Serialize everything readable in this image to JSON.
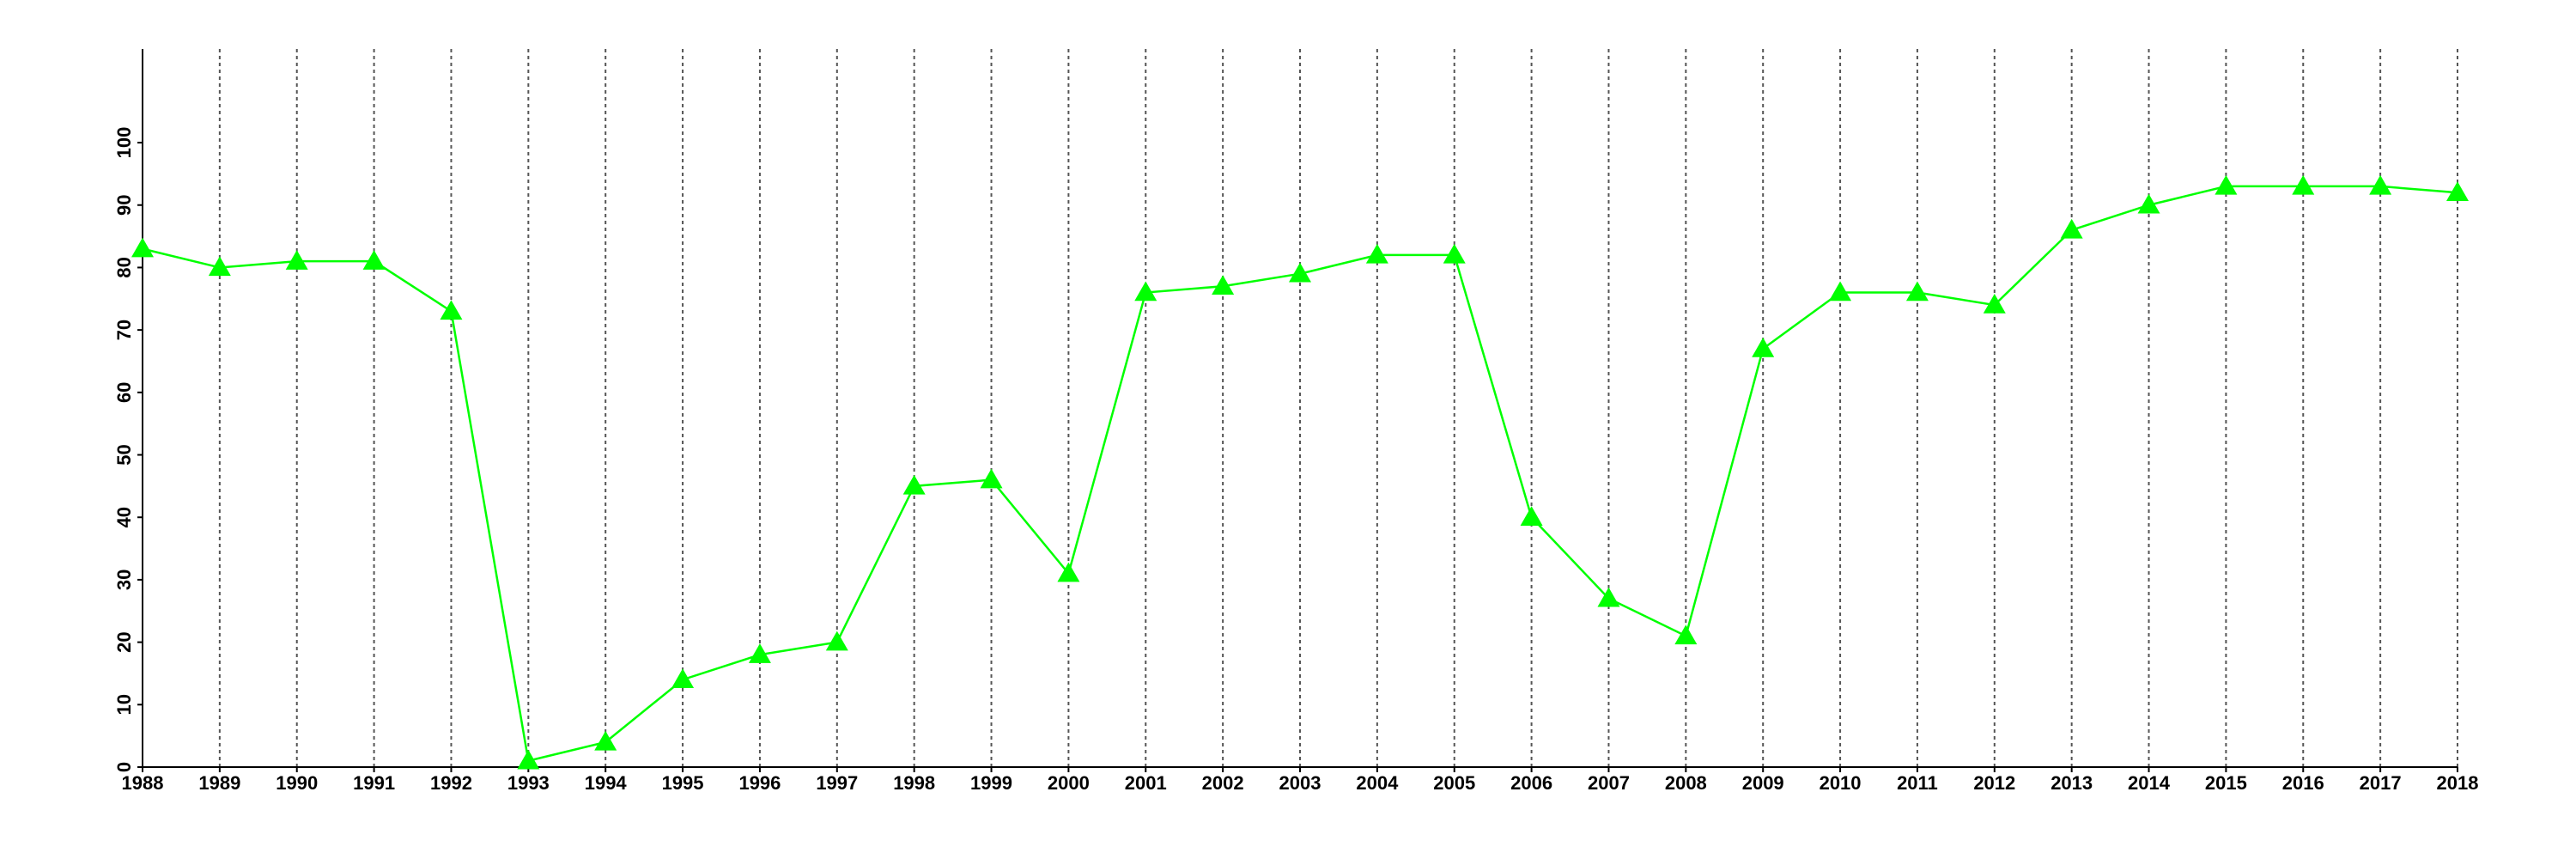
{
  "chart_data": {
    "type": "line",
    "x": [
      1988,
      1989,
      1990,
      1991,
      1992,
      1993,
      1994,
      1995,
      1996,
      1997,
      1998,
      1999,
      2000,
      2001,
      2002,
      2003,
      2004,
      2005,
      2006,
      2007,
      2008,
      2009,
      2010,
      2011,
      2012,
      2013,
      2014,
      2015,
      2016,
      2017,
      2018
    ],
    "series": [
      {
        "color": "#00ff00",
        "marker": "triangle",
        "values": [
          83,
          80,
          81,
          81,
          73,
          1,
          4,
          14,
          18,
          20,
          45,
          46,
          31,
          76,
          77,
          79,
          82,
          82,
          40,
          27,
          21,
          67,
          76,
          76,
          74,
          86,
          90,
          93,
          93,
          93,
          92
        ]
      }
    ],
    "xlim": [
      1988,
      2018
    ],
    "xticks": [
      1988,
      1989,
      1990,
      1991,
      1992,
      1993,
      1994,
      1995,
      1996,
      1997,
      1998,
      1999,
      2000,
      2001,
      2002,
      2003,
      2004,
      2005,
      2006,
      2007,
      2008,
      2009,
      2010,
      2011,
      2012,
      2013,
      2014,
      2015,
      2016,
      2017,
      2018
    ],
    "ylim": [
      0,
      115
    ],
    "yticks": [
      0,
      10,
      20,
      30,
      40,
      50,
      60,
      70,
      80,
      90,
      100
    ],
    "grid": "x"
  }
}
